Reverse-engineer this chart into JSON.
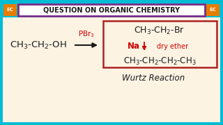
{
  "bg_outer": "#00bcd4",
  "bg_inner": "#fdf3e3",
  "title_text": "QUESTION ON ORGANIC CHEMISTRY",
  "title_bg": "#ffffff",
  "title_border": "#7b2d8b",
  "title_color": "#1a1a1a",
  "ec_bg": "#e67c00",
  "ec_text": "#ffffff",
  "reactant": "CH$_3$-CH$_2$-OH",
  "arrow_label": "PBr$_3$",
  "arrow_color": "#cc0000",
  "product1": "CH$_3$-CH$_2$-Br",
  "reagent_na": "Na",
  "reagent_ether": "dry ether",
  "product2": "CH$_3$-CH$_2$-CH$_2$-CH$_3$",
  "wurtz": "Wurtz Reaction",
  "box_color": "#aa2222",
  "down_arrow_color": "#cc0000",
  "red_text_color": "#cc0000",
  "black_text_color": "#1a1a1a",
  "main_arrow_color": "#1a1a1a"
}
